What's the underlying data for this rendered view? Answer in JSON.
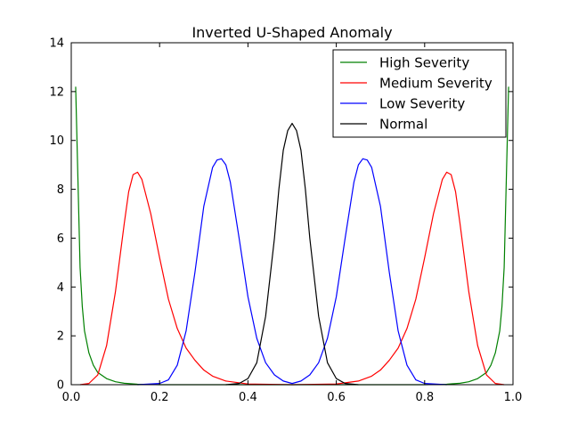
{
  "chart_data": {
    "type": "line",
    "title": "Inverted U-Shaped Anomaly",
    "xlabel": "",
    "ylabel": "",
    "xlim": [
      0.0,
      1.0
    ],
    "ylim": [
      0,
      14
    ],
    "x_ticks": [
      0.0,
      0.2,
      0.4,
      0.6,
      0.8,
      1.0
    ],
    "x_tick_labels": [
      "0.0",
      "0.2",
      "0.4",
      "0.6",
      "0.8",
      "1.0"
    ],
    "y_ticks": [
      0,
      2,
      4,
      6,
      8,
      10,
      12,
      14
    ],
    "y_tick_labels": [
      "0",
      "2",
      "4",
      "6",
      "8",
      "10",
      "12",
      "14"
    ],
    "grid": false,
    "legend_position": "top-right",
    "series": [
      {
        "name": "High Severity",
        "color": "#008000",
        "x": [
          0.01,
          0.015,
          0.02,
          0.025,
          0.03,
          0.04,
          0.05,
          0.06,
          0.08,
          0.1,
          0.12,
          0.15,
          0.2,
          0.25,
          0.3,
          0.4,
          0.5,
          0.6,
          0.7,
          0.75,
          0.8,
          0.85,
          0.88,
          0.9,
          0.92,
          0.94,
          0.95,
          0.96,
          0.97,
          0.975,
          0.98,
          0.985,
          0.99
        ],
        "y": [
          12.2,
          8.5,
          4.8,
          3.2,
          2.2,
          1.3,
          0.8,
          0.5,
          0.25,
          0.12,
          0.06,
          0.02,
          0.0,
          0.0,
          0.0,
          0.0,
          0.0,
          0.0,
          0.0,
          0.0,
          0.0,
          0.02,
          0.06,
          0.12,
          0.25,
          0.5,
          0.8,
          1.3,
          2.2,
          3.2,
          4.8,
          8.5,
          12.2
        ]
      },
      {
        "name": "Medium Severity",
        "color": "#ff0000",
        "x": [
          0.02,
          0.04,
          0.06,
          0.08,
          0.1,
          0.12,
          0.13,
          0.14,
          0.15,
          0.16,
          0.18,
          0.2,
          0.22,
          0.24,
          0.26,
          0.28,
          0.3,
          0.32,
          0.35,
          0.4,
          0.5,
          0.6,
          0.65,
          0.68,
          0.7,
          0.72,
          0.74,
          0.76,
          0.78,
          0.8,
          0.82,
          0.84,
          0.85,
          0.86,
          0.87,
          0.88,
          0.9,
          0.92,
          0.94,
          0.96,
          0.98
        ],
        "y": [
          0.0,
          0.05,
          0.4,
          1.6,
          3.8,
          6.6,
          7.9,
          8.6,
          8.7,
          8.4,
          7.0,
          5.2,
          3.5,
          2.3,
          1.5,
          1.0,
          0.6,
          0.35,
          0.15,
          0.03,
          0.0,
          0.03,
          0.15,
          0.35,
          0.6,
          1.0,
          1.5,
          2.3,
          3.5,
          5.2,
          7.0,
          8.4,
          8.7,
          8.6,
          7.9,
          6.6,
          3.8,
          1.6,
          0.4,
          0.05,
          0.0
        ]
      },
      {
        "name": "Low Severity",
        "color": "#0000ff",
        "x": [
          0.15,
          0.2,
          0.22,
          0.24,
          0.26,
          0.28,
          0.3,
          0.32,
          0.33,
          0.34,
          0.35,
          0.36,
          0.38,
          0.4,
          0.42,
          0.44,
          0.46,
          0.48,
          0.5,
          0.52,
          0.54,
          0.56,
          0.58,
          0.6,
          0.62,
          0.64,
          0.65,
          0.66,
          0.67,
          0.68,
          0.7,
          0.72,
          0.74,
          0.76,
          0.78,
          0.8,
          0.85
        ],
        "y": [
          0.0,
          0.05,
          0.2,
          0.8,
          2.2,
          4.6,
          7.3,
          8.9,
          9.2,
          9.25,
          9.0,
          8.3,
          6.0,
          3.6,
          1.9,
          0.9,
          0.4,
          0.15,
          0.05,
          0.15,
          0.4,
          0.9,
          1.9,
          3.6,
          6.0,
          8.3,
          9.0,
          9.25,
          9.2,
          8.9,
          7.3,
          4.6,
          2.2,
          0.8,
          0.2,
          0.05,
          0.0
        ]
      },
      {
        "name": "Normal",
        "color": "#000000",
        "x": [
          0.35,
          0.38,
          0.4,
          0.42,
          0.44,
          0.46,
          0.47,
          0.48,
          0.49,
          0.5,
          0.51,
          0.52,
          0.53,
          0.54,
          0.56,
          0.58,
          0.6,
          0.62,
          0.65
        ],
        "y": [
          0.0,
          0.05,
          0.25,
          0.9,
          2.8,
          6.0,
          8.0,
          9.6,
          10.4,
          10.7,
          10.4,
          9.6,
          8.0,
          6.0,
          2.8,
          0.9,
          0.25,
          0.05,
          0.0
        ]
      }
    ]
  }
}
